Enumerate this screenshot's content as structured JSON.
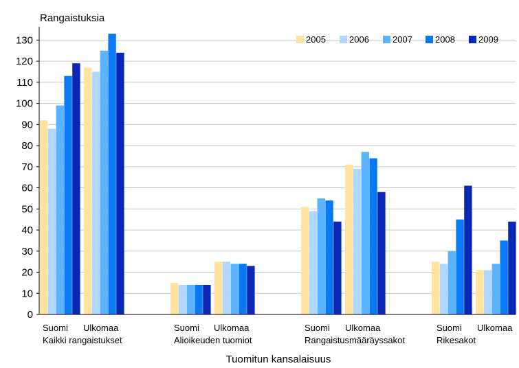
{
  "chart_data": {
    "type": "bar",
    "title": "",
    "ylabel": "Rangaistuksia",
    "xlabel": "Tuomitun kansalaisuus",
    "ylim": [
      0,
      135
    ],
    "yticks": [
      0,
      10,
      20,
      30,
      40,
      50,
      60,
      70,
      80,
      90,
      100,
      110,
      120,
      130
    ],
    "grid": true,
    "legend_position": "top-right",
    "groups": [
      {
        "label": "Kaikki rangaistukset",
        "subcategories": [
          "Suomi",
          "Ulkomaa"
        ]
      },
      {
        "label": "Alioikeuden tuomiot",
        "subcategories": [
          "Suomi",
          "Ulkomaa"
        ]
      },
      {
        "label": "Rangaistusmääräyssakot",
        "subcategories": [
          "Suomi",
          "Ulkomaa"
        ]
      },
      {
        "label": "Rikesakot",
        "subcategories": [
          "Suomi",
          "Ulkomaa"
        ]
      }
    ],
    "categories": [
      "Kaikki rangaistukset / Suomi",
      "Kaikki rangaistukset / Ulkomaa",
      "Alioikeuden tuomiot / Suomi",
      "Alioikeuden tuomiot / Ulkomaa",
      "Rangaistusmääräyssakot / Suomi",
      "Rangaistusmääräyssakot / Ulkomaa",
      "Rikesakot / Suomi",
      "Rikesakot / Ulkomaa"
    ],
    "series": [
      {
        "name": "2005",
        "color": "#ffe4a0",
        "values": [
          92,
          117,
          15,
          25,
          51,
          71,
          25,
          21
        ]
      },
      {
        "name": "2006",
        "color": "#b0d8ff",
        "values": [
          88,
          115,
          14,
          25,
          49,
          69,
          24,
          21
        ]
      },
      {
        "name": "2007",
        "color": "#5ab4ff",
        "values": [
          99,
          125,
          14,
          24,
          55,
          77,
          30,
          24
        ]
      },
      {
        "name": "2008",
        "color": "#0a78f0",
        "values": [
          113,
          133,
          14,
          24,
          54,
          74,
          45,
          35
        ]
      },
      {
        "name": "2009",
        "color": "#0a28b4",
        "values": [
          119,
          124,
          14,
          23,
          44,
          58,
          61,
          44
        ]
      }
    ]
  }
}
